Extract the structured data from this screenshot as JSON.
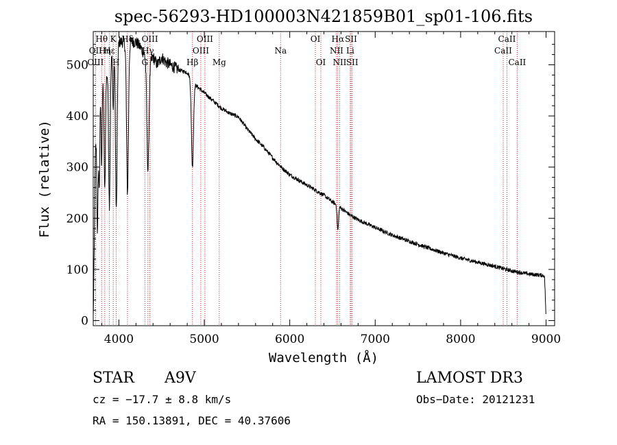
{
  "chart_data": {
    "type": "line",
    "title": "spec-56293-HD100003N421859B01_sp01-106.fits",
    "xlabel": "Wavelength (Å)",
    "ylabel": "Flux (relative)",
    "xlim": [
      3700,
      9100
    ],
    "ylim": [
      -10,
      565
    ],
    "xticks": [
      4000,
      5000,
      6000,
      7000,
      8000,
      9000
    ],
    "yticks": [
      0,
      100,
      200,
      300,
      400,
      500
    ],
    "series": [
      {
        "name": "spectrum",
        "continuum": [
          [
            3700,
            5
          ],
          [
            3712,
            140
          ],
          [
            3725,
            330
          ],
          [
            3760,
            420
          ],
          [
            3790,
            490
          ],
          [
            3830,
            470
          ],
          [
            3880,
            490
          ],
          [
            3920,
            520
          ],
          [
            3960,
            545
          ],
          [
            4000,
            545
          ],
          [
            4050,
            545
          ],
          [
            4100,
            540
          ],
          [
            4150,
            545
          ],
          [
            4200,
            545
          ],
          [
            4250,
            535
          ],
          [
            4300,
            520
          ],
          [
            4350,
            500
          ],
          [
            4400,
            515
          ],
          [
            4450,
            500
          ],
          [
            4500,
            515
          ],
          [
            4550,
            505
          ],
          [
            4600,
            500
          ],
          [
            4700,
            490
          ],
          [
            4800,
            485
          ],
          [
            4900,
            460
          ],
          [
            5000,
            445
          ],
          [
            5100,
            430
          ],
          [
            5200,
            415
          ],
          [
            5300,
            405
          ],
          [
            5400,
            398
          ],
          [
            5500,
            375
          ],
          [
            5600,
            355
          ],
          [
            5700,
            338
          ],
          [
            5800,
            318
          ],
          [
            5900,
            300
          ],
          [
            6000,
            285
          ],
          [
            6100,
            275
          ],
          [
            6200,
            265
          ],
          [
            6300,
            255
          ],
          [
            6400,
            245
          ],
          [
            6500,
            232
          ],
          [
            6600,
            220
          ],
          [
            6700,
            207
          ],
          [
            6800,
            197
          ],
          [
            7000,
            182
          ],
          [
            7200,
            167
          ],
          [
            7400,
            155
          ],
          [
            7600,
            143
          ],
          [
            7800,
            132
          ],
          [
            8000,
            122
          ],
          [
            8200,
            114
          ],
          [
            8400,
            106
          ],
          [
            8600,
            97
          ],
          [
            8800,
            91
          ],
          [
            8980,
            88
          ],
          [
            8990,
            55
          ],
          [
            8998,
            10
          ]
        ],
        "absorption_lines": [
          {
            "center": 3750,
            "depth": 220,
            "width": 7
          },
          {
            "center": 3771,
            "depth": 180,
            "width": 7
          },
          {
            "center": 3798,
            "depth": 180,
            "width": 7
          },
          {
            "center": 3835,
            "depth": 220,
            "width": 8
          },
          {
            "center": 3889,
            "depth": 270,
            "width": 9
          },
          {
            "center": 3934,
            "depth": 120,
            "width": 6
          },
          {
            "center": 3970,
            "depth": 330,
            "width": 10
          },
          {
            "center": 4101,
            "depth": 290,
            "width": 11
          },
          {
            "center": 4340,
            "depth": 210,
            "width": 12
          },
          {
            "center": 4861,
            "depth": 170,
            "width": 12
          },
          {
            "center": 6563,
            "depth": 48,
            "width": 8
          }
        ],
        "noise_amplitude": 4
      }
    ],
    "line_markers": [
      {
        "label": "Hθ",
        "wavelength": 3798,
        "row": 1
      },
      {
        "label": "OII",
        "wavelength": 3727,
        "row": 2
      },
      {
        "label": "OIII",
        "wavelength": 3727,
        "row": 3
      },
      {
        "label": "Hε",
        "wavelength": 3889,
        "row": 2
      },
      {
        "label": "Hη",
        "wavelength": 3835,
        "row": 2
      },
      {
        "label": "K",
        "wavelength": 3934,
        "row": 1
      },
      {
        "label": "H",
        "wavelength": 3968,
        "row": 3
      },
      {
        "label": "Hδ",
        "wavelength": 4101,
        "row": 1
      },
      {
        "label": "G",
        "wavelength": 4304,
        "row": 3
      },
      {
        "label": "OIII",
        "wavelength": 4363,
        "row": 1
      },
      {
        "label": "Hγ",
        "wavelength": 4340,
        "row": 2
      },
      {
        "label": "Hβ",
        "wavelength": 4861,
        "row": 3
      },
      {
        "label": "OIII",
        "wavelength": 4959,
        "row": 2
      },
      {
        "label": "OIII",
        "wavelength": 5007,
        "row": 1
      },
      {
        "label": "Mg",
        "wavelength": 5175,
        "row": 3
      },
      {
        "label": "Na",
        "wavelength": 5893,
        "row": 2
      },
      {
        "label": "OI",
        "wavelength": 6300,
        "row": 1
      },
      {
        "label": "OI",
        "wavelength": 6364,
        "row": 3
      },
      {
        "label": "NII",
        "wavelength": 6548,
        "row": 2
      },
      {
        "label": "Hα",
        "wavelength": 6563,
        "row": 1
      },
      {
        "label": "NII",
        "wavelength": 6584,
        "row": 3
      },
      {
        "label": "SII",
        "wavelength": 6717,
        "row": 1
      },
      {
        "label": "Li",
        "wavelength": 6708,
        "row": 2
      },
      {
        "label": "SII",
        "wavelength": 6731,
        "row": 3
      },
      {
        "label": "CaII",
        "wavelength": 8498,
        "row": 2
      },
      {
        "label": "CaII",
        "wavelength": 8542,
        "row": 1
      },
      {
        "label": "CaII",
        "wavelength": 8662,
        "row": 3
      }
    ]
  },
  "info": {
    "object_type": "STAR",
    "subclass": "A9V",
    "cz": "cz = −17.7 ± 8.8 km/s",
    "coords": "RA = 150.13891, DEC =  40.37606",
    "survey": "LAMOST DR3",
    "obs_date": "Obs−Date: 20121231"
  },
  "colors": {
    "spectrum": "#000000",
    "marker_line": "#cc2222",
    "axes": "#000000"
  }
}
